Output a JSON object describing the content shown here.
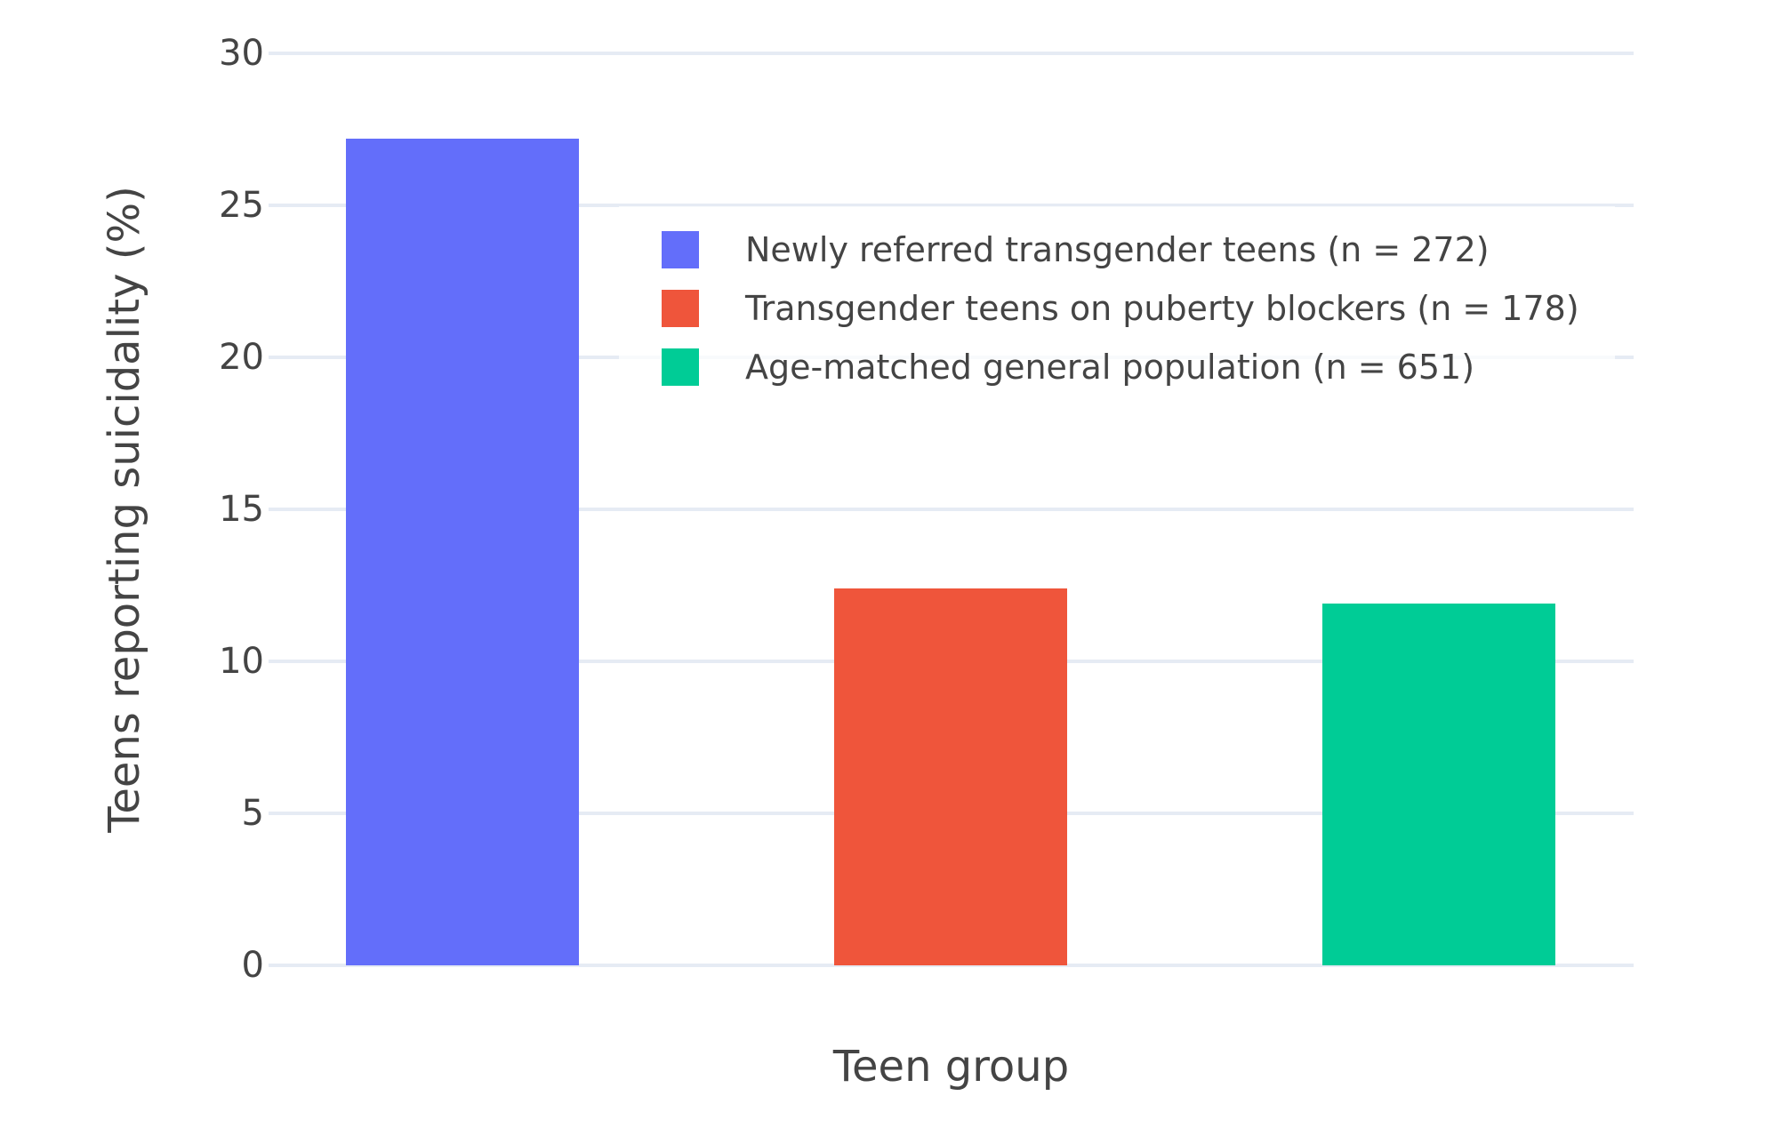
{
  "chart_data": {
    "type": "bar",
    "title": "",
    "xlabel": "Teen group",
    "ylabel": "Teens reporting suicidality (%)",
    "categories": [
      "Newly referred transgender teens (n = 272)",
      "Transgender teens on puberty blockers (n = 178)",
      "Age-matched general population (n = 651)"
    ],
    "values": [
      27.2,
      12.4,
      11.9
    ],
    "colors": [
      "#636EFA",
      "#EF553B",
      "#00CC96"
    ],
    "slugs": [
      "newly-referred-transgender-teens",
      "transgender-teens-on-puberty-blockers",
      "age-matched-general-population"
    ],
    "ylim": [
      0,
      30
    ],
    "yticks": [
      0,
      5,
      10,
      15,
      20,
      25,
      30
    ],
    "grid": true,
    "grid_color": "#E6EBF4",
    "text_color": "#444444",
    "background_color": "#ffffff",
    "legend": {
      "position": "inside-top-center-right",
      "entries": [
        "Newly referred transgender teens (n = 272)",
        "Transgender teens on puberty blockers (n = 178)",
        "Age-matched general population (n = 651)"
      ]
    }
  }
}
